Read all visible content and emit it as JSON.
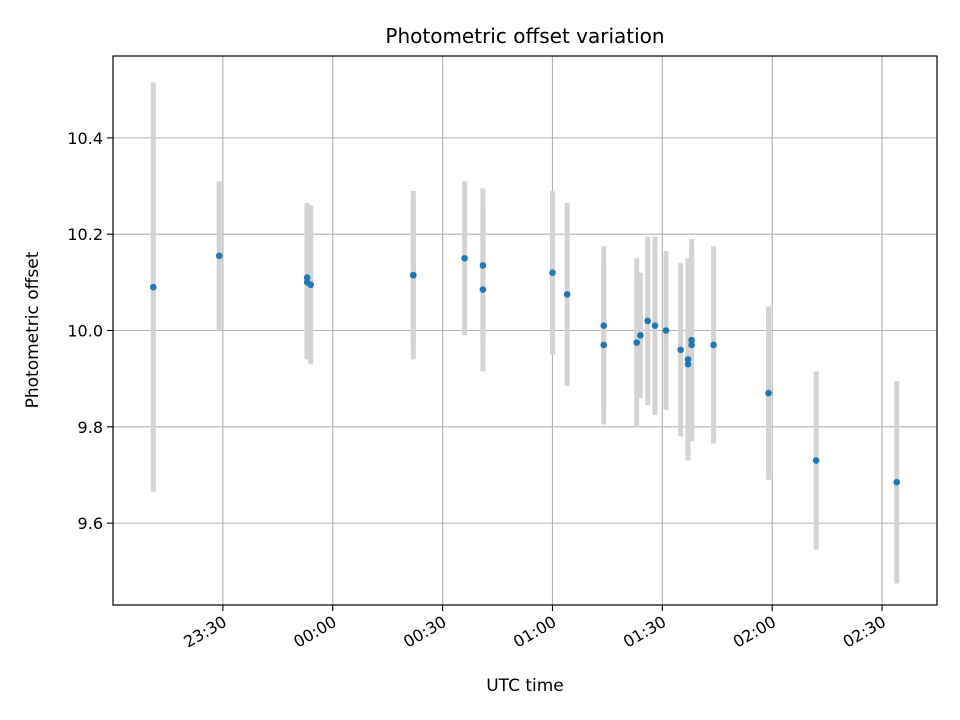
{
  "chart_data": {
    "type": "scatter",
    "title": "Photometric offset variation",
    "xlabel": "UTC time",
    "ylabel": "Photometric offset",
    "x_unit": "UTC time",
    "xlim": [
      "23:00",
      "02:45"
    ],
    "ylim": [
      9.43,
      10.57
    ],
    "x_ticks": [
      "23:30",
      "00:00",
      "00:30",
      "01:00",
      "01:30",
      "02:00",
      "02:30"
    ],
    "y_ticks": [
      9.6,
      9.8,
      10.0,
      10.2,
      10.4
    ],
    "y_tick_labels": [
      "9.6",
      "9.8",
      "10.0",
      "10.2",
      "10.4"
    ],
    "grid": true,
    "colors": {
      "points": "#1f77b4",
      "error_bars": "#d3d3d3",
      "grid": "#b0b0b0"
    },
    "series": [
      {
        "x": [
          "23:11",
          "23:29",
          "23:53",
          "23:53",
          "23:54",
          "00:22",
          "00:22",
          "00:36",
          "00:41",
          "00:41",
          "01:00",
          "01:04",
          "01:14",
          "01:14",
          "01:23",
          "01:24",
          "01:26",
          "01:28",
          "01:31",
          "01:35",
          "01:37",
          "01:37",
          "01:38",
          "01:38",
          "01:44",
          "01:59",
          "02:12",
          "02:34"
        ],
        "y": [
          10.09,
          10.155,
          10.11,
          10.1,
          10.095,
          10.115,
          10.115,
          10.15,
          10.135,
          10.085,
          10.12,
          10.075,
          10.01,
          9.97,
          9.975,
          9.99,
          10.02,
          10.01,
          10.0,
          9.96,
          9.93,
          9.94,
          9.98,
          9.97,
          9.97,
          9.87,
          9.73,
          9.685
        ],
        "yerr": [
          0.425,
          0.155,
          0.155,
          0.16,
          0.165,
          0.15,
          0.175,
          0.16,
          0.16,
          0.17,
          0.17,
          0.19,
          0.165,
          0.165,
          0.175,
          0.13,
          0.175,
          0.185,
          0.165,
          0.18,
          0.19,
          0.21,
          0.21,
          0.2,
          0.205,
          0.18,
          0.185,
          0.21
        ]
      }
    ]
  }
}
